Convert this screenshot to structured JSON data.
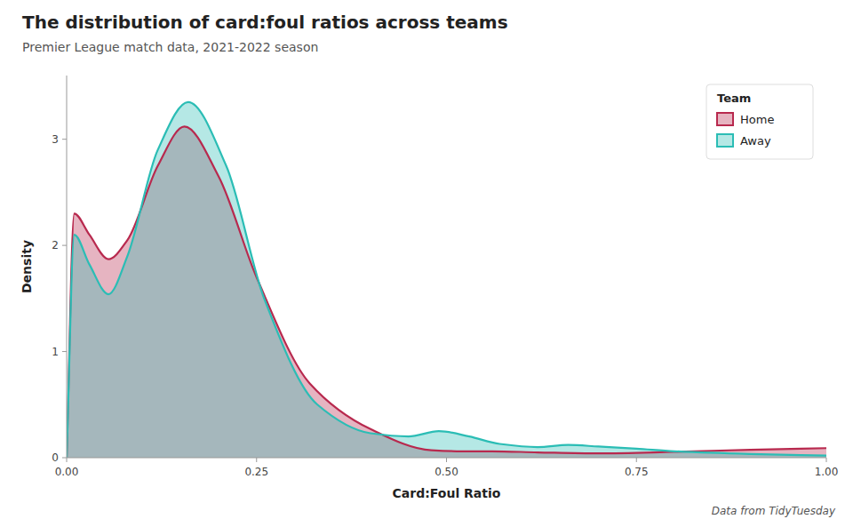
{
  "chart_data": {
    "type": "area",
    "title": "The distribution of card:foul ratios across teams",
    "subtitle": "Premier League match data, 2021-2022 season",
    "x_label": "Card:Foul Ratio",
    "y_label": "Density",
    "annotation": "Data from TidyTuesday",
    "legend_title": "Team",
    "legend": "upper right",
    "grid": false,
    "xlim": [
      0.0,
      1.0
    ],
    "ylim": [
      0,
      3.6
    ],
    "xticks": [
      {
        "value": 0.0,
        "label": "0.00"
      },
      {
        "value": 0.25,
        "label": "0.25"
      },
      {
        "value": 0.5,
        "label": "0.50"
      },
      {
        "value": 0.75,
        "label": "0.75"
      },
      {
        "value": 1.0,
        "label": "1.00"
      }
    ],
    "yticks": [
      0,
      1,
      2,
      3
    ],
    "series": [
      {
        "name": "Home",
        "color": "#b8294e",
        "x": [
          0.0,
          0.01,
          0.03,
          0.055,
          0.08,
          0.12,
          0.155,
          0.2,
          0.25,
          0.32,
          0.4,
          0.48,
          0.52,
          0.56,
          0.62,
          0.7,
          0.8,
          0.9,
          1.0
        ],
        "values": [
          0.0,
          2.3,
          2.1,
          1.87,
          2.05,
          2.75,
          3.12,
          2.65,
          1.7,
          0.7,
          0.27,
          0.07,
          0.06,
          0.06,
          0.05,
          0.04,
          0.055,
          0.075,
          0.09
        ]
      },
      {
        "name": "Away",
        "color": "#2bbdb5",
        "x": [
          0.0,
          0.01,
          0.03,
          0.055,
          0.08,
          0.12,
          0.16,
          0.21,
          0.26,
          0.33,
          0.4,
          0.45,
          0.49,
          0.53,
          0.57,
          0.62,
          0.66,
          0.7,
          0.75,
          0.8,
          0.9,
          1.0
        ],
        "values": [
          0.0,
          2.1,
          1.82,
          1.54,
          1.9,
          2.9,
          3.35,
          2.75,
          1.5,
          0.5,
          0.23,
          0.2,
          0.25,
          0.2,
          0.13,
          0.1,
          0.12,
          0.105,
          0.085,
          0.06,
          0.035,
          0.02
        ]
      }
    ]
  }
}
